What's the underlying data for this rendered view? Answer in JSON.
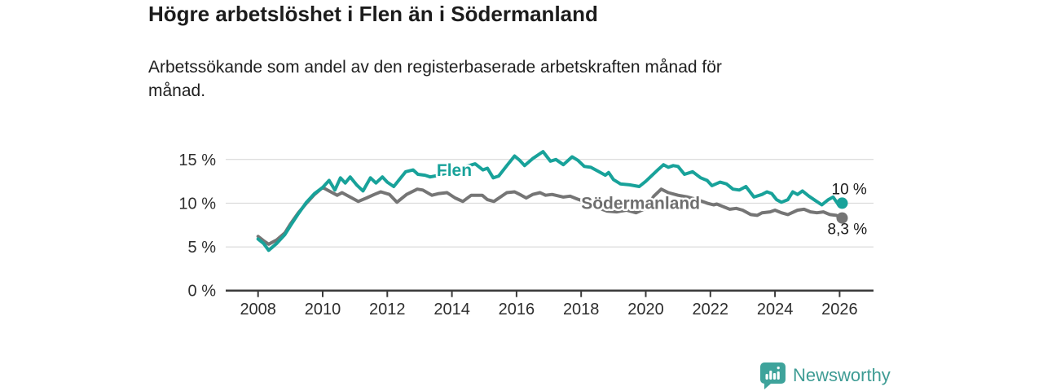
{
  "footer": {
    "brand": "Newsworthy",
    "logo_icon": "bar-chart-speech-bubble-icon"
  },
  "colors": {
    "flen": "#18a29a",
    "sodermanland": "#757575",
    "sodermanland_label": "#6e6e6e",
    "grid": "#d4d4d4",
    "axis": "#3a3a3a",
    "title_text": "#1c1c1c",
    "brand_teal": "#3e9c94"
  },
  "chart_data": {
    "type": "line",
    "title": "Högre arbetslöshet i Flen än i Södermanland",
    "subtitle_lines": [
      "Arbetssökande som andel av den registerbaserade arbetskraften månad för",
      "månad."
    ],
    "x_axis": {
      "ticks": [
        2008,
        2010,
        2012,
        2014,
        2016,
        2018,
        2020,
        2022,
        2024,
        2026
      ],
      "range": [
        2007.0,
        2027.05
      ],
      "grid": false
    },
    "y_axis": {
      "tick_labels": [
        "0 %",
        "5 %",
        "10 %",
        "15 %"
      ],
      "tick_values": [
        0,
        5,
        10,
        15
      ],
      "range": [
        0,
        17.4
      ],
      "grid": true
    },
    "legend_position": "inline-labels",
    "series": [
      {
        "name": "Södermanland",
        "color": "#757575",
        "label_color": "#6e6e6e",
        "inline_label": {
          "year": 2018.0,
          "value": 9.35
        },
        "end_label": "8,3 %",
        "end_value": 8.3,
        "points": [
          [
            2008.0,
            6.2
          ],
          [
            2008.17,
            5.7
          ],
          [
            2008.33,
            5.3
          ],
          [
            2008.58,
            5.8
          ],
          [
            2008.83,
            6.6
          ],
          [
            2009.0,
            7.6
          ],
          [
            2009.25,
            8.9
          ],
          [
            2009.5,
            10.0
          ],
          [
            2009.75,
            11.0
          ],
          [
            2010.0,
            11.8
          ],
          [
            2010.25,
            11.3
          ],
          [
            2010.45,
            10.9
          ],
          [
            2010.6,
            11.2
          ],
          [
            2010.85,
            10.7
          ],
          [
            2011.1,
            10.2
          ],
          [
            2011.36,
            10.6
          ],
          [
            2011.6,
            11.0
          ],
          [
            2011.8,
            11.3
          ],
          [
            2012.07,
            11.0
          ],
          [
            2012.3,
            10.1
          ],
          [
            2012.6,
            11.0
          ],
          [
            2012.93,
            11.6
          ],
          [
            2013.1,
            11.5
          ],
          [
            2013.38,
            10.9
          ],
          [
            2013.6,
            11.1
          ],
          [
            2013.85,
            11.2
          ],
          [
            2014.1,
            10.6
          ],
          [
            2014.34,
            10.2
          ],
          [
            2014.6,
            10.9
          ],
          [
            2014.94,
            10.9
          ],
          [
            2015.1,
            10.4
          ],
          [
            2015.3,
            10.2
          ],
          [
            2015.7,
            11.2
          ],
          [
            2015.94,
            11.3
          ],
          [
            2016.15,
            10.9
          ],
          [
            2016.3,
            10.6
          ],
          [
            2016.5,
            11.0
          ],
          [
            2016.73,
            11.2
          ],
          [
            2016.9,
            10.9
          ],
          [
            2017.1,
            11.0
          ],
          [
            2017.45,
            10.7
          ],
          [
            2017.66,
            10.8
          ],
          [
            2017.86,
            10.5
          ],
          [
            2018.16,
            10.1
          ],
          [
            2018.5,
            9.5
          ],
          [
            2018.8,
            9.1
          ],
          [
            2019.1,
            9.0
          ],
          [
            2019.4,
            9.2
          ],
          [
            2019.7,
            8.9
          ],
          [
            2020.0,
            9.4
          ],
          [
            2020.25,
            10.8
          ],
          [
            2020.48,
            11.6
          ],
          [
            2020.7,
            11.2
          ],
          [
            2021.0,
            10.9
          ],
          [
            2021.3,
            10.7
          ],
          [
            2021.6,
            10.4
          ],
          [
            2021.9,
            10.0
          ],
          [
            2022.1,
            9.8
          ],
          [
            2022.2,
            9.9
          ],
          [
            2022.4,
            9.6
          ],
          [
            2022.6,
            9.3
          ],
          [
            2022.8,
            9.4
          ],
          [
            2023.0,
            9.2
          ],
          [
            2023.25,
            8.7
          ],
          [
            2023.45,
            8.6
          ],
          [
            2023.6,
            8.9
          ],
          [
            2023.85,
            9.0
          ],
          [
            2024.0,
            9.2
          ],
          [
            2024.2,
            8.9
          ],
          [
            2024.4,
            8.7
          ],
          [
            2024.7,
            9.2
          ],
          [
            2024.9,
            9.3
          ],
          [
            2025.1,
            9.0
          ],
          [
            2025.3,
            8.9
          ],
          [
            2025.5,
            9.0
          ],
          [
            2025.7,
            8.7
          ],
          [
            2025.9,
            8.6
          ],
          [
            2026.08,
            8.3
          ]
        ]
      },
      {
        "name": "Flen",
        "color": "#18a29a",
        "label_color": "#18a29a",
        "inline_label": {
          "year": 2013.53,
          "value": 13.1
        },
        "end_label": "10 %",
        "end_value": 10.0,
        "points": [
          [
            2008.0,
            5.9
          ],
          [
            2008.17,
            5.4
          ],
          [
            2008.33,
            4.6
          ],
          [
            2008.58,
            5.4
          ],
          [
            2008.83,
            6.4
          ],
          [
            2009.0,
            7.4
          ],
          [
            2009.25,
            8.8
          ],
          [
            2009.5,
            10.1
          ],
          [
            2009.75,
            11.1
          ],
          [
            2010.0,
            11.8
          ],
          [
            2010.2,
            12.6
          ],
          [
            2010.38,
            11.5
          ],
          [
            2010.55,
            12.9
          ],
          [
            2010.7,
            12.3
          ],
          [
            2010.85,
            13.0
          ],
          [
            2011.05,
            12.1
          ],
          [
            2011.25,
            11.4
          ],
          [
            2011.48,
            12.9
          ],
          [
            2011.65,
            12.3
          ],
          [
            2011.85,
            13.0
          ],
          [
            2012.0,
            12.4
          ],
          [
            2012.2,
            11.9
          ],
          [
            2012.57,
            13.6
          ],
          [
            2012.8,
            13.8
          ],
          [
            2012.95,
            13.3
          ],
          [
            2013.17,
            13.2
          ],
          [
            2013.33,
            13.0
          ],
          [
            2013.6,
            13.2
          ],
          [
            2013.9,
            13.5
          ],
          [
            2014.2,
            13.8
          ],
          [
            2014.45,
            14.2
          ],
          [
            2014.72,
            14.5
          ],
          [
            2014.96,
            13.8
          ],
          [
            2015.1,
            14.0
          ],
          [
            2015.28,
            12.9
          ],
          [
            2015.45,
            13.1
          ],
          [
            2015.7,
            14.3
          ],
          [
            2015.94,
            15.4
          ],
          [
            2016.1,
            14.9
          ],
          [
            2016.25,
            14.3
          ],
          [
            2016.5,
            15.1
          ],
          [
            2016.82,
            15.9
          ],
          [
            2017.05,
            14.8
          ],
          [
            2017.22,
            15.0
          ],
          [
            2017.45,
            14.4
          ],
          [
            2017.72,
            15.3
          ],
          [
            2017.9,
            14.9
          ],
          [
            2018.1,
            14.2
          ],
          [
            2018.3,
            14.1
          ],
          [
            2018.55,
            13.6
          ],
          [
            2018.75,
            13.2
          ],
          [
            2018.85,
            13.5
          ],
          [
            2019.0,
            12.7
          ],
          [
            2019.22,
            12.2
          ],
          [
            2019.5,
            12.1
          ],
          [
            2019.8,
            11.9
          ],
          [
            2020.0,
            12.5
          ],
          [
            2020.2,
            13.2
          ],
          [
            2020.4,
            13.9
          ],
          [
            2020.55,
            14.4
          ],
          [
            2020.7,
            14.1
          ],
          [
            2020.85,
            14.3
          ],
          [
            2021.0,
            14.2
          ],
          [
            2021.2,
            13.3
          ],
          [
            2021.45,
            13.6
          ],
          [
            2021.7,
            12.9
          ],
          [
            2021.9,
            12.6
          ],
          [
            2022.05,
            12.0
          ],
          [
            2022.3,
            12.4
          ],
          [
            2022.5,
            12.2
          ],
          [
            2022.7,
            11.6
          ],
          [
            2022.9,
            11.5
          ],
          [
            2023.1,
            11.9
          ],
          [
            2023.35,
            10.7
          ],
          [
            2023.6,
            11.0
          ],
          [
            2023.75,
            11.3
          ],
          [
            2023.9,
            11.1
          ],
          [
            2024.05,
            10.4
          ],
          [
            2024.2,
            10.1
          ],
          [
            2024.4,
            10.4
          ],
          [
            2024.55,
            11.3
          ],
          [
            2024.7,
            11.0
          ],
          [
            2024.85,
            11.4
          ],
          [
            2025.05,
            10.8
          ],
          [
            2025.25,
            10.3
          ],
          [
            2025.45,
            9.8
          ],
          [
            2025.65,
            10.4
          ],
          [
            2025.8,
            10.7
          ],
          [
            2025.95,
            9.9
          ],
          [
            2026.08,
            10.0
          ]
        ]
      }
    ]
  }
}
